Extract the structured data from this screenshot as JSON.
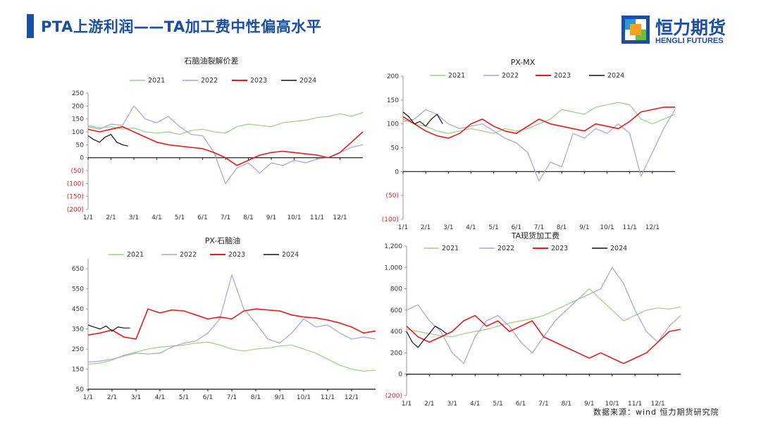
{
  "header": {
    "title": "PTA上游利润——TA加工费中性偏高水平",
    "logo_cn": "恒力期货",
    "logo_en": "HENGLI FUTURES"
  },
  "footer": {
    "source": "数据来源：wind 恒力期货研究院"
  },
  "colors": {
    "2021": "#9bcf83",
    "2022": "#a9a2d8",
    "2023": "#e41c1c",
    "2024": "#111111",
    "brand": "#1a4fa3"
  },
  "chart_data": [
    {
      "type": "line",
      "title": "石脑油裂解价差",
      "legend": [
        "2021",
        "2022",
        "2023",
        "2024"
      ],
      "ylim": [
        -200,
        250
      ],
      "yticks": [
        "(200)",
        "(150)",
        "(100)",
        "(50)",
        "0",
        "50",
        "100",
        "150",
        "200",
        "250"
      ],
      "yticks_values": [
        -200,
        -150,
        -100,
        -50,
        0,
        50,
        100,
        150,
        200,
        250
      ],
      "xticks": [
        "1/1",
        "2/1",
        "3/1",
        "4/1",
        "5/1",
        "6/1",
        "7/1",
        "8/1",
        "9/1",
        "10/1",
        "11/1",
        "12/1"
      ],
      "series": [
        {
          "name": "2021",
          "x": [
            0,
            0.5,
            1,
            1.5,
            2,
            2.5,
            3,
            3.5,
            4,
            4.5,
            5,
            5.5,
            6,
            6.5,
            7,
            7.5,
            8,
            8.5,
            9,
            9.5,
            10,
            10.5,
            11,
            11.5,
            12
          ],
          "values": [
            125,
            115,
            120,
            110,
            115,
            100,
            95,
            100,
            90,
            105,
            110,
            100,
            95,
            120,
            130,
            125,
            120,
            135,
            140,
            145,
            155,
            160,
            170,
            160,
            175
          ]
        },
        {
          "name": "2022",
          "x": [
            0,
            0.5,
            1,
            1.5,
            2,
            2.5,
            3,
            3.5,
            4,
            4.5,
            5,
            5.5,
            6,
            6.5,
            7,
            7.5,
            8,
            8.5,
            9,
            9.5,
            10,
            10.5,
            11,
            11.5,
            12
          ],
          "values": [
            120,
            110,
            130,
            125,
            200,
            150,
            135,
            160,
            120,
            90,
            85,
            20,
            -100,
            -40,
            -20,
            -60,
            -20,
            -30,
            -10,
            -20,
            -5,
            0,
            20,
            40,
            50
          ]
        },
        {
          "name": "2023",
          "x": [
            0,
            0.5,
            1,
            1.5,
            2,
            2.5,
            3,
            3.5,
            4,
            4.5,
            5,
            5.5,
            6,
            6.5,
            7,
            7.5,
            8,
            8.5,
            9,
            9.5,
            10,
            10.5,
            11,
            11.5,
            12
          ],
          "values": [
            110,
            100,
            110,
            120,
            100,
            80,
            60,
            50,
            45,
            40,
            35,
            20,
            0,
            -30,
            -10,
            10,
            20,
            25,
            20,
            15,
            10,
            0,
            20,
            60,
            100
          ]
        },
        {
          "name": "2024",
          "x": [
            0,
            0.25,
            0.5,
            0.75,
            1,
            1.25,
            1.5,
            1.75
          ],
          "values": [
            85,
            70,
            60,
            80,
            90,
            60,
            50,
            45
          ]
        }
      ]
    },
    {
      "type": "line",
      "title": "PX-MX",
      "legend": [
        "2021",
        "2022",
        "2023",
        "2024"
      ],
      "ylim": [
        -100,
        200
      ],
      "yticks": [
        "(100)",
        "(50)",
        "0",
        "50",
        "100",
        "150",
        "200"
      ],
      "yticks_values": [
        -100,
        -50,
        0,
        50,
        100,
        150,
        200
      ],
      "xticks": [
        "1/1",
        "2/1",
        "3/1",
        "4/1",
        "5/1",
        "6/1",
        "7/1",
        "8/1",
        "9/1",
        "10/1",
        "11/1",
        "12/1"
      ],
      "series": [
        {
          "name": "2021",
          "x": [
            0,
            0.5,
            1,
            1.5,
            2,
            2.5,
            3,
            3.5,
            4,
            4.5,
            5,
            5.5,
            6,
            6.5,
            7,
            7.5,
            8,
            8.5,
            9,
            9.5,
            10,
            10.5,
            11,
            11.5,
            12
          ],
          "values": [
            110,
            100,
            95,
            85,
            80,
            85,
            90,
            85,
            80,
            90,
            85,
            90,
            100,
            110,
            130,
            125,
            120,
            135,
            140,
            145,
            140,
            110,
            100,
            110,
            120
          ]
        },
        {
          "name": "2022",
          "x": [
            0,
            0.5,
            1,
            1.5,
            2,
            2.5,
            3,
            3.5,
            4,
            4.5,
            5,
            5.5,
            6,
            6.5,
            7,
            7.5,
            8,
            8.5,
            9,
            9.5,
            10,
            10.5,
            11,
            11.5,
            12
          ],
          "values": [
            105,
            110,
            130,
            120,
            100,
            90,
            95,
            100,
            85,
            70,
            60,
            40,
            -20,
            20,
            10,
            80,
            70,
            90,
            80,
            100,
            80,
            -10,
            40,
            90,
            130
          ]
        },
        {
          "name": "2023",
          "x": [
            0,
            0.5,
            1,
            1.5,
            2,
            2.5,
            3,
            3.5,
            4,
            4.5,
            5,
            5.5,
            6,
            6.5,
            7,
            7.5,
            8,
            8.5,
            9,
            9.5,
            10,
            10.5,
            11,
            11.5,
            12
          ],
          "values": [
            115,
            100,
            85,
            75,
            70,
            80,
            100,
            110,
            95,
            85,
            80,
            95,
            110,
            100,
            95,
            90,
            85,
            100,
            95,
            90,
            105,
            125,
            130,
            135,
            135
          ]
        },
        {
          "name": "2024",
          "x": [
            0,
            0.25,
            0.5,
            0.75,
            1,
            1.25,
            1.5,
            1.75
          ],
          "values": [
            125,
            115,
            100,
            105,
            95,
            110,
            120,
            100
          ]
        }
      ]
    },
    {
      "type": "line",
      "title": "PX-石脑油",
      "legend": [
        "2021",
        "2022",
        "2023",
        "2024"
      ],
      "ylim": [
        50,
        700
      ],
      "yticks": [
        "50",
        "150",
        "250",
        "350",
        "450",
        "550",
        "650"
      ],
      "yticks_values": [
        50,
        150,
        250,
        350,
        450,
        550,
        650
      ],
      "xticks": [
        "1/1",
        "2/1",
        "3/1",
        "4/1",
        "5/1",
        "6/1",
        "7/1",
        "8/1",
        "9/1",
        "10/1",
        "11/1",
        "12/1"
      ],
      "series": [
        {
          "name": "2021",
          "x": [
            0,
            0.5,
            1,
            1.5,
            2,
            2.5,
            3,
            3.5,
            4,
            4.5,
            5,
            5.5,
            6,
            6.5,
            7,
            7.5,
            8,
            8.5,
            9,
            9.5,
            10,
            10.5,
            11,
            11.5,
            12
          ],
          "values": [
            175,
            180,
            195,
            220,
            235,
            250,
            260,
            265,
            270,
            280,
            285,
            270,
            250,
            240,
            250,
            255,
            265,
            270,
            250,
            230,
            200,
            170,
            150,
            140,
            145
          ]
        },
        {
          "name": "2022",
          "x": [
            0,
            0.5,
            1,
            1.5,
            2,
            2.5,
            3,
            3.5,
            4,
            4.5,
            5,
            5.5,
            6,
            6.5,
            7,
            7.5,
            8,
            8.5,
            9,
            9.5,
            10,
            10.5,
            11,
            11.5,
            12
          ],
          "values": [
            185,
            190,
            200,
            215,
            230,
            225,
            230,
            260,
            280,
            290,
            330,
            400,
            620,
            450,
            380,
            300,
            280,
            330,
            400,
            360,
            370,
            330,
            300,
            310,
            300
          ]
        },
        {
          "name": "2023",
          "x": [
            0,
            0.5,
            1,
            1.5,
            2,
            2.5,
            3,
            3.5,
            4,
            4.5,
            5,
            5.5,
            6,
            6.5,
            7,
            7.5,
            8,
            8.5,
            9,
            9.5,
            10,
            10.5,
            11,
            11.5,
            12
          ],
          "values": [
            320,
            330,
            345,
            310,
            300,
            450,
            430,
            445,
            440,
            420,
            400,
            410,
            400,
            440,
            450,
            445,
            440,
            420,
            410,
            405,
            395,
            380,
            360,
            330,
            340
          ]
        },
        {
          "name": "2024",
          "x": [
            0,
            0.25,
            0.5,
            0.75,
            1,
            1.25,
            1.5,
            1.75
          ],
          "values": [
            370,
            360,
            350,
            365,
            340,
            360,
            355,
            355
          ]
        }
      ]
    },
    {
      "type": "line",
      "title": "TA现货加工费",
      "legend": [
        "2021",
        "2022",
        "2023",
        "2024"
      ],
      "ylim": [
        -200,
        1200
      ],
      "yticks": [
        "(200)",
        "0",
        "200",
        "400",
        "600",
        "800",
        "1,000",
        "1,200"
      ],
      "yticks_values": [
        -200,
        0,
        200,
        400,
        600,
        800,
        1000,
        1200
      ],
      "xticks": [
        "1/1",
        "2/1",
        "3/1",
        "4/1",
        "5/1",
        "6/1",
        "7/1",
        "8/1",
        "9/1",
        "10/1",
        "11/1",
        "12/1"
      ],
      "series": [
        {
          "name": "2021",
          "x": [
            0,
            0.5,
            1,
            1.5,
            2,
            2.5,
            3,
            3.5,
            4,
            4.5,
            5,
            5.5,
            6,
            6.5,
            7,
            7.5,
            8,
            8.5,
            9,
            9.5,
            10,
            10.5,
            11,
            11.5,
            12
          ],
          "values": [
            420,
            400,
            380,
            360,
            350,
            380,
            400,
            420,
            450,
            480,
            500,
            520,
            550,
            600,
            650,
            700,
            800,
            700,
            600,
            500,
            550,
            600,
            620,
            610,
            630
          ]
        },
        {
          "name": "2022",
          "x": [
            0,
            0.5,
            1,
            1.5,
            2,
            2.5,
            3,
            3.5,
            4,
            4.5,
            5,
            5.5,
            6,
            6.5,
            7,
            7.5,
            8,
            8.5,
            9,
            9.5,
            10,
            10.5,
            11,
            11.5,
            12
          ],
          "values": [
            600,
            650,
            500,
            400,
            200,
            100,
            350,
            500,
            550,
            450,
            300,
            200,
            350,
            500,
            600,
            700,
            750,
            800,
            1000,
            850,
            600,
            400,
            300,
            450,
            550
          ]
        },
        {
          "name": "2023",
          "x": [
            0,
            0.5,
            1,
            1.5,
            2,
            2.5,
            3,
            3.5,
            4,
            4.5,
            5,
            5.5,
            6,
            6.5,
            7,
            7.5,
            8,
            8.5,
            9,
            9.5,
            10,
            10.5,
            11,
            11.5,
            12
          ],
          "values": [
            450,
            350,
            300,
            350,
            400,
            500,
            550,
            450,
            500,
            400,
            450,
            500,
            350,
            300,
            250,
            200,
            150,
            200,
            150,
            100,
            150,
            200,
            300,
            400,
            420
          ]
        },
        {
          "name": "2024",
          "x": [
            0,
            0.25,
            0.5,
            0.75,
            1,
            1.25,
            1.5,
            1.75
          ],
          "values": [
            400,
            300,
            250,
            320,
            380,
            450,
            420,
            380
          ]
        }
      ]
    }
  ]
}
